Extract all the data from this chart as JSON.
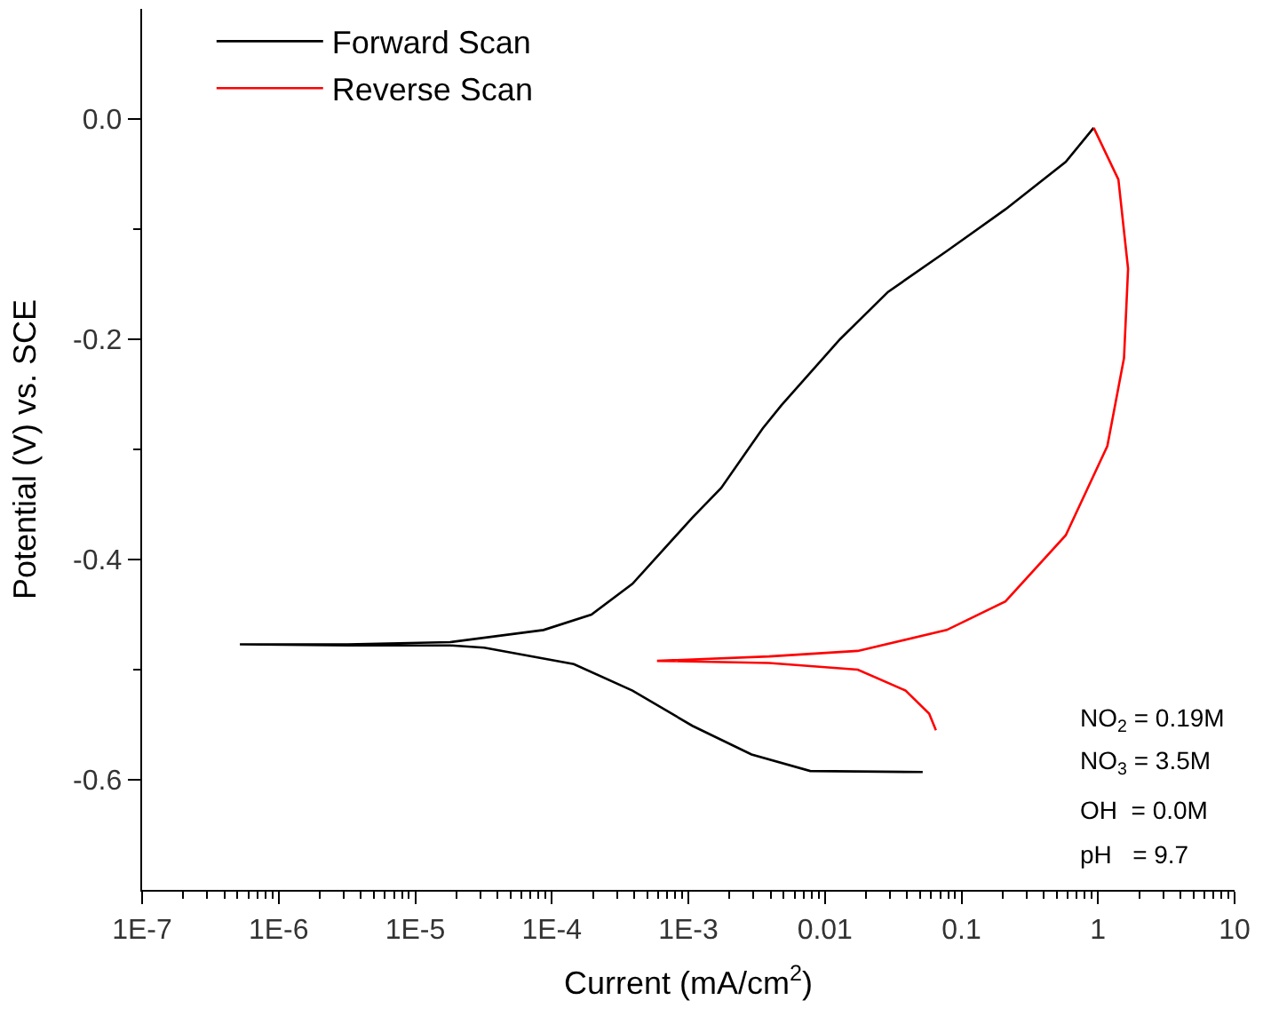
{
  "chart_data": {
    "type": "line",
    "xlabel": "Current (mA/cm$^{2}$)",
    "ylabel": "Potential (V) vs. SCE",
    "log": "x",
    "legend": "top left",
    "marker": "none",
    "line_style": "solid",
    "xlim": [
      1e-07,
      10
    ],
    "ylim": [
      -0.7,
      0.1
    ],
    "xticks": [
      {
        "value": 1e-07,
        "label": "1E-7"
      },
      {
        "value": 1e-06,
        "label": "1E-6"
      },
      {
        "value": 1e-05,
        "label": "1E-5"
      },
      {
        "value": 0.0001,
        "label": "1E-4"
      },
      {
        "value": 0.001,
        "label": "1E-3"
      },
      0.01,
      0.1,
      1,
      10,
      {
        "value": 2e-07,
        "label": null
      },
      {
        "value": 3e-07,
        "label": null
      },
      {
        "value": 4e-07,
        "label": null
      },
      {
        "value": 5e-07,
        "label": null
      },
      {
        "value": 6e-07,
        "label": null
      },
      {
        "value": 7e-07,
        "label": null
      },
      {
        "value": 8e-07,
        "label": null
      },
      {
        "value": 9e-07,
        "label": null
      },
      {
        "value": 2e-06,
        "label": null
      },
      {
        "value": 3e-06,
        "label": null
      },
      {
        "value": 4e-06,
        "label": null
      },
      {
        "value": 5e-06,
        "label": null
      },
      {
        "value": 6e-06,
        "label": null
      },
      {
        "value": 7e-06,
        "label": null
      },
      {
        "value": 8e-06,
        "label": null
      },
      {
        "value": 9e-06,
        "label": null
      },
      {
        "value": 2e-05,
        "label": null
      },
      {
        "value": 3e-05,
        "label": null
      },
      {
        "value": 4e-05,
        "label": null
      },
      {
        "value": 5e-05,
        "label": null
      },
      {
        "value": 6e-05,
        "label": null
      },
      {
        "value": 7e-05,
        "label": null
      },
      {
        "value": 8e-05,
        "label": null
      },
      {
        "value": 9e-05,
        "label": null
      },
      {
        "value": 0.0002,
        "label": null
      },
      {
        "value": 0.0003,
        "label": null
      },
      {
        "value": 0.0004,
        "label": null
      },
      {
        "value": 0.0005,
        "label": null
      },
      {
        "value": 0.0006,
        "label": null
      },
      {
        "value": 0.0007,
        "label": null
      },
      {
        "value": 0.0008,
        "label": null
      },
      {
        "value": 0.0009,
        "label": null
      },
      {
        "value": 0.002,
        "label": null
      },
      {
        "value": 0.003,
        "label": null
      },
      {
        "value": 0.004,
        "label": null
      },
      {
        "value": 0.005,
        "label": null
      },
      {
        "value": 0.006,
        "label": null
      },
      {
        "value": 0.007,
        "label": null
      },
      {
        "value": 0.008,
        "label": null
      },
      {
        "value": 0.009,
        "label": null
      },
      {
        "value": 0.02,
        "label": null
      },
      {
        "value": 0.03,
        "label": null
      },
      {
        "value": 0.04,
        "label": null
      },
      {
        "value": 0.05,
        "label": null
      },
      {
        "value": 0.06,
        "label": null
      },
      {
        "value": 0.07,
        "label": null
      },
      {
        "value": 0.08,
        "label": null
      },
      {
        "value": 0.09,
        "label": null
      },
      {
        "value": 0.2,
        "label": null
      },
      {
        "value": 0.3,
        "label": null
      },
      {
        "value": 0.4,
        "label": null
      },
      {
        "value": 0.5,
        "label": null
      },
      {
        "value": 0.6,
        "label": null
      },
      {
        "value": 0.7,
        "label": null
      },
      {
        "value": 0.8,
        "label": null
      },
      {
        "value": 0.9,
        "label": null
      },
      {
        "value": 2,
        "label": null
      },
      {
        "value": 3,
        "label": null
      },
      {
        "value": 4,
        "label": null
      },
      {
        "value": 5,
        "label": null
      },
      {
        "value": 6,
        "label": null
      },
      {
        "value": 7,
        "label": null
      },
      {
        "value": 8,
        "label": null
      },
      {
        "value": 9,
        "label": null
      }
    ],
    "yticks": [
      {
        "value": 0,
        "label": "0.0"
      },
      -0.2,
      -0.4,
      -0.6,
      {
        "value": -0.1,
        "label": null
      },
      {
        "value": -0.3,
        "label": null
      },
      {
        "value": -0.5,
        "label": null
      }
    ],
    "annotations": [
      "NO$_{2}$ = 0.19M",
      "NO$_{3}$ = 3.5M",
      "OH  = 0.0M",
      "pH   = 9.7"
    ],
    "series": [
      {
        "name": "Forward Scan",
        "color": "#000000",
        "x": [
          0.052,
          0.0078,
          0.0029,
          0.00107,
          0.00039,
          0.000145,
          3.2e-05,
          1.8e-05,
          3.2e-06,
          5.2e-07,
          3.2e-06,
          1.8e-05,
          8.7e-05,
          0.000195,
          0.00039,
          0.00107,
          0.00174,
          0.0035,
          0.0048,
          0.0129,
          0.029,
          0.078,
          0.21,
          0.58,
          0.93
        ],
        "values": [
          -0.593,
          -0.592,
          -0.577,
          -0.551,
          -0.519,
          -0.495,
          -0.48,
          -0.478,
          -0.478,
          -0.477,
          -0.477,
          -0.475,
          -0.464,
          -0.45,
          -0.422,
          -0.362,
          -0.335,
          -0.281,
          -0.26,
          -0.2,
          -0.157,
          -0.12,
          -0.082,
          -0.039,
          -0.008
        ]
      },
      {
        "name": "Reverse Scan",
        "color": "#ff0000",
        "x": [
          0.93,
          1.41,
          1.66,
          1.55,
          1.17,
          0.58,
          0.21,
          0.078,
          0.0174,
          0.0039,
          0.00059,
          0.0039,
          0.0174,
          0.039,
          0.058,
          0.065
        ],
        "values": [
          -0.008,
          -0.055,
          -0.136,
          -0.217,
          -0.297,
          -0.378,
          -0.438,
          -0.464,
          -0.483,
          -0.488,
          -0.492,
          -0.494,
          -0.5,
          -0.519,
          -0.54,
          -0.555
        ]
      }
    ]
  }
}
